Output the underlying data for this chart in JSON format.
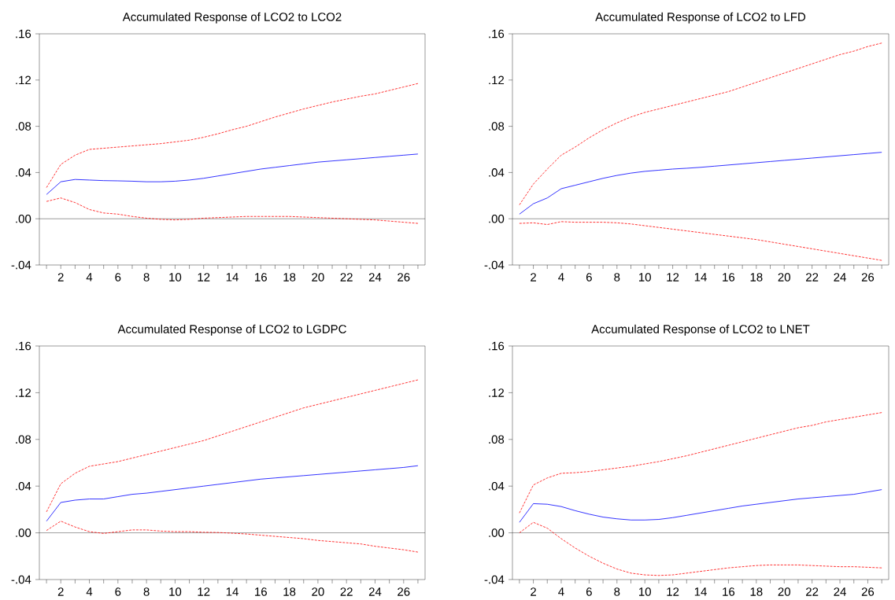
{
  "chart_data": [
    {
      "type": "line",
      "title": "Accumulated Response of LCO2 to LCO2",
      "x": [
        1,
        2,
        3,
        4,
        5,
        6,
        7,
        8,
        9,
        10,
        11,
        12,
        13,
        14,
        15,
        16,
        17,
        18,
        19,
        20,
        21,
        22,
        23,
        24,
        25,
        26,
        27
      ],
      "series": [
        {
          "color": "#0000ff",
          "line_style": "solid",
          "values": [
            0.021,
            0.032,
            0.034,
            0.0335,
            0.033,
            0.0328,
            0.0325,
            0.032,
            0.032,
            0.0325,
            0.0335,
            0.035,
            0.037,
            0.039,
            0.041,
            0.043,
            0.0445,
            0.046,
            0.0475,
            0.049,
            0.05,
            0.051,
            0.052,
            0.053,
            0.054,
            0.055,
            0.056
          ]
        },
        {
          "color": "#ff0000",
          "line_style": "dashed",
          "values": [
            0.027,
            0.047,
            0.055,
            0.06,
            0.061,
            0.062,
            0.063,
            0.064,
            0.065,
            0.0665,
            0.068,
            0.0705,
            0.0735,
            0.077,
            0.08,
            0.084,
            0.088,
            0.0915,
            0.095,
            0.098,
            0.101,
            0.1035,
            0.106,
            0.108,
            0.111,
            0.114,
            0.117
          ]
        },
        {
          "color": "#ff0000",
          "line_style": "dashed",
          "values": [
            0.015,
            0.018,
            0.014,
            0.008,
            0.005,
            0.004,
            0.002,
            0.0005,
            -0.0005,
            -0.001,
            -0.0005,
            0.0005,
            0.001,
            0.0015,
            0.002,
            0.002,
            0.002,
            0.002,
            0.0015,
            0.001,
            0.0005,
            0,
            -0.0005,
            -0.001,
            -0.002,
            -0.003,
            -0.004
          ]
        }
      ],
      "xlim": [
        0.5,
        27.5
      ],
      "ylim": [
        -0.04,
        0.16
      ],
      "xticks": [
        {
          "value": 1,
          "label": null
        },
        2,
        {
          "value": 3,
          "label": null
        },
        4,
        {
          "value": 5,
          "label": null
        },
        6,
        {
          "value": 7,
          "label": null
        },
        8,
        {
          "value": 9,
          "label": null
        },
        10,
        {
          "value": 11,
          "label": null
        },
        12,
        {
          "value": 13,
          "label": null
        },
        14,
        {
          "value": 15,
          "label": null
        },
        16,
        {
          "value": 17,
          "label": null
        },
        18,
        {
          "value": 19,
          "label": null
        },
        20,
        {
          "value": 21,
          "label": null
        },
        22,
        {
          "value": 23,
          "label": null
        },
        24,
        {
          "value": 25,
          "label": null
        },
        26,
        {
          "value": 27,
          "label": null
        }
      ],
      "yticks": [
        {
          "value": -0.04,
          "label": "-.04"
        },
        {
          "value": 0,
          "label": ".00"
        },
        {
          "value": 0.04,
          "label": ".04"
        },
        {
          "value": 0.08,
          "label": ".08"
        },
        {
          "value": 0.12,
          "label": ".12"
        },
        {
          "value": 0.16,
          "label": ".16"
        }
      ],
      "ref_lines": [
        {
          "axis": "y",
          "value": 0,
          "color": "#000000"
        }
      ]
    },
    {
      "type": "line",
      "title": "Accumulated Response of LCO2 to LFD",
      "x": [
        1,
        2,
        3,
        4,
        5,
        6,
        7,
        8,
        9,
        10,
        11,
        12,
        13,
        14,
        15,
        16,
        17,
        18,
        19,
        20,
        21,
        22,
        23,
        24,
        25,
        26,
        27
      ],
      "series": [
        {
          "color": "#0000ff",
          "line_style": "solid",
          "values": [
            0.004,
            0.013,
            0.018,
            0.026,
            0.029,
            0.032,
            0.035,
            0.0375,
            0.0395,
            0.041,
            0.042,
            0.043,
            0.0437,
            0.0445,
            0.0455,
            0.0465,
            0.0475,
            0.0485,
            0.0495,
            0.0505,
            0.0515,
            0.0525,
            0.0535,
            0.0545,
            0.0555,
            0.0565,
            0.0575
          ]
        },
        {
          "color": "#ff0000",
          "line_style": "dashed",
          "values": [
            0.012,
            0.03,
            0.043,
            0.055,
            0.062,
            0.07,
            0.077,
            0.083,
            0.088,
            0.092,
            0.095,
            0.098,
            0.101,
            0.104,
            0.107,
            0.11,
            0.114,
            0.118,
            0.122,
            0.126,
            0.13,
            0.134,
            0.138,
            0.142,
            0.145,
            0.149,
            0.152
          ]
        },
        {
          "color": "#ff0000",
          "line_style": "dashed",
          "values": [
            -0.004,
            -0.0035,
            -0.005,
            -0.0025,
            -0.003,
            -0.003,
            -0.003,
            -0.0035,
            -0.0045,
            -0.006,
            -0.0075,
            -0.009,
            -0.0105,
            -0.012,
            -0.0135,
            -0.015,
            -0.0165,
            -0.018,
            -0.02,
            -0.022,
            -0.024,
            -0.026,
            -0.028,
            -0.03,
            -0.032,
            -0.034,
            -0.036
          ]
        }
      ],
      "xlim": [
        0.5,
        27.5
      ],
      "ylim": [
        -0.04,
        0.16
      ],
      "xticks": [
        {
          "value": 1,
          "label": null
        },
        2,
        {
          "value": 3,
          "label": null
        },
        4,
        {
          "value": 5,
          "label": null
        },
        6,
        {
          "value": 7,
          "label": null
        },
        8,
        {
          "value": 9,
          "label": null
        },
        10,
        {
          "value": 11,
          "label": null
        },
        12,
        {
          "value": 13,
          "label": null
        },
        14,
        {
          "value": 15,
          "label": null
        },
        16,
        {
          "value": 17,
          "label": null
        },
        18,
        {
          "value": 19,
          "label": null
        },
        20,
        {
          "value": 21,
          "label": null
        },
        22,
        {
          "value": 23,
          "label": null
        },
        24,
        {
          "value": 25,
          "label": null
        },
        26,
        {
          "value": 27,
          "label": null
        }
      ],
      "yticks": [
        {
          "value": -0.04,
          "label": "-.04"
        },
        {
          "value": 0,
          "label": ".00"
        },
        {
          "value": 0.04,
          "label": ".04"
        },
        {
          "value": 0.08,
          "label": ".08"
        },
        {
          "value": 0.12,
          "label": ".12"
        },
        {
          "value": 0.16,
          "label": ".16"
        }
      ],
      "ref_lines": [
        {
          "axis": "y",
          "value": 0,
          "color": "#000000"
        }
      ]
    },
    {
      "type": "line",
      "title": "Accumulated Response of LCO2 to LGDPC",
      "x": [
        1,
        2,
        3,
        4,
        5,
        6,
        7,
        8,
        9,
        10,
        11,
        12,
        13,
        14,
        15,
        16,
        17,
        18,
        19,
        20,
        21,
        22,
        23,
        24,
        25,
        26,
        27
      ],
      "series": [
        {
          "color": "#0000ff",
          "line_style": "solid",
          "values": [
            0.01,
            0.026,
            0.028,
            0.029,
            0.029,
            0.031,
            0.033,
            0.034,
            0.0355,
            0.037,
            0.0385,
            0.04,
            0.0415,
            0.043,
            0.0445,
            0.046,
            0.047,
            0.048,
            0.049,
            0.05,
            0.051,
            0.052,
            0.053,
            0.054,
            0.055,
            0.056,
            0.0575
          ]
        },
        {
          "color": "#ff0000",
          "line_style": "dashed",
          "values": [
            0.018,
            0.042,
            0.051,
            0.057,
            0.059,
            0.061,
            0.064,
            0.067,
            0.07,
            0.073,
            0.076,
            0.079,
            0.083,
            0.087,
            0.091,
            0.095,
            0.099,
            0.103,
            0.107,
            0.11,
            0.113,
            0.116,
            0.119,
            0.122,
            0.125,
            0.128,
            0.131
          ]
        },
        {
          "color": "#ff0000",
          "line_style": "dashed",
          "values": [
            0.002,
            0.01,
            0.005,
            0.001,
            -0.0005,
            0.001,
            0.0025,
            0.0025,
            0.0015,
            0.001,
            0.001,
            0.0005,
            0.0003,
            -0.0003,
            -0.001,
            -0.002,
            -0.003,
            -0.004,
            -0.005,
            -0.0065,
            -0.0075,
            -0.0085,
            -0.0095,
            -0.0115,
            -0.013,
            -0.0145,
            -0.0165
          ]
        }
      ],
      "xlim": [
        0.5,
        27.5
      ],
      "ylim": [
        -0.04,
        0.16
      ],
      "xticks": [
        {
          "value": 1,
          "label": null
        },
        2,
        {
          "value": 3,
          "label": null
        },
        4,
        {
          "value": 5,
          "label": null
        },
        6,
        {
          "value": 7,
          "label": null
        },
        8,
        {
          "value": 9,
          "label": null
        },
        10,
        {
          "value": 11,
          "label": null
        },
        12,
        {
          "value": 13,
          "label": null
        },
        14,
        {
          "value": 15,
          "label": null
        },
        16,
        {
          "value": 17,
          "label": null
        },
        18,
        {
          "value": 19,
          "label": null
        },
        20,
        {
          "value": 21,
          "label": null
        },
        22,
        {
          "value": 23,
          "label": null
        },
        24,
        {
          "value": 25,
          "label": null
        },
        26,
        {
          "value": 27,
          "label": null
        }
      ],
      "yticks": [
        {
          "value": -0.04,
          "label": "-.04"
        },
        {
          "value": 0,
          "label": ".00"
        },
        {
          "value": 0.04,
          "label": ".04"
        },
        {
          "value": 0.08,
          "label": ".08"
        },
        {
          "value": 0.12,
          "label": ".12"
        },
        {
          "value": 0.16,
          "label": ".16"
        }
      ],
      "ref_lines": [
        {
          "axis": "y",
          "value": 0,
          "color": "#000000"
        }
      ]
    },
    {
      "type": "line",
      "title": "Accumulated Response of LCO2 to LNET",
      "x": [
        1,
        2,
        3,
        4,
        5,
        6,
        7,
        8,
        9,
        10,
        11,
        12,
        13,
        14,
        15,
        16,
        17,
        18,
        19,
        20,
        21,
        22,
        23,
        24,
        25,
        26,
        27
      ],
      "series": [
        {
          "color": "#0000ff",
          "line_style": "solid",
          "values": [
            0.009,
            0.025,
            0.0245,
            0.0225,
            0.019,
            0.016,
            0.0135,
            0.012,
            0.011,
            0.011,
            0.0115,
            0.013,
            0.015,
            0.017,
            0.019,
            0.021,
            0.023,
            0.0245,
            0.026,
            0.0275,
            0.029,
            0.03,
            0.031,
            0.032,
            0.033,
            0.035,
            0.037
          ]
        },
        {
          "color": "#ff0000",
          "line_style": "dashed",
          "values": [
            0.017,
            0.041,
            0.047,
            0.051,
            0.0515,
            0.0525,
            0.054,
            0.0555,
            0.057,
            0.059,
            0.061,
            0.0635,
            0.066,
            0.069,
            0.072,
            0.075,
            0.078,
            0.081,
            0.084,
            0.087,
            0.09,
            0.092,
            0.095,
            0.097,
            0.099,
            0.101,
            0.103
          ]
        },
        {
          "color": "#ff0000",
          "line_style": "dashed",
          "values": [
            0,
            0.009,
            0.004,
            -0.005,
            -0.013,
            -0.02,
            -0.026,
            -0.031,
            -0.0345,
            -0.036,
            -0.0365,
            -0.036,
            -0.0345,
            -0.033,
            -0.0315,
            -0.03,
            -0.029,
            -0.028,
            -0.0275,
            -0.0275,
            -0.0275,
            -0.028,
            -0.0285,
            -0.029,
            -0.029,
            -0.0295,
            -0.03
          ]
        }
      ],
      "xlim": [
        0.5,
        27.5
      ],
      "ylim": [
        -0.04,
        0.16
      ],
      "xticks": [
        {
          "value": 1,
          "label": null
        },
        2,
        {
          "value": 3,
          "label": null
        },
        4,
        {
          "value": 5,
          "label": null
        },
        6,
        {
          "value": 7,
          "label": null
        },
        8,
        {
          "value": 9,
          "label": null
        },
        10,
        {
          "value": 11,
          "label": null
        },
        12,
        {
          "value": 13,
          "label": null
        },
        14,
        {
          "value": 15,
          "label": null
        },
        16,
        {
          "value": 17,
          "label": null
        },
        18,
        {
          "value": 19,
          "label": null
        },
        20,
        {
          "value": 21,
          "label": null
        },
        22,
        {
          "value": 23,
          "label": null
        },
        24,
        {
          "value": 25,
          "label": null
        },
        26,
        {
          "value": 27,
          "label": null
        }
      ],
      "yticks": [
        {
          "value": -0.04,
          "label": "-.04"
        },
        {
          "value": 0,
          "label": ".00"
        },
        {
          "value": 0.04,
          "label": ".04"
        },
        {
          "value": 0.08,
          "label": ".08"
        },
        {
          "value": 0.12,
          "label": ".12"
        },
        {
          "value": 0.16,
          "label": ".16"
        }
      ],
      "ref_lines": [
        {
          "axis": "y",
          "value": 0,
          "color": "#000000"
        }
      ]
    }
  ]
}
